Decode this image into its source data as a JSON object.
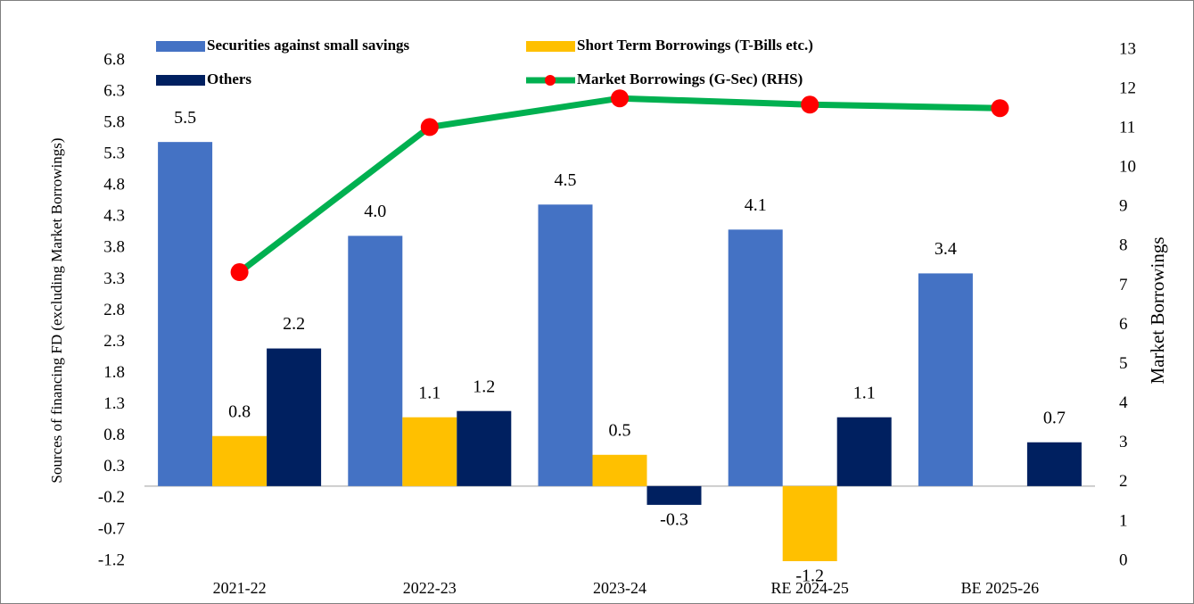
{
  "chart_data": {
    "type": "bar_line",
    "categories": [
      "2021-22",
      "2022-23",
      "2023-24",
      "RE 2024-25",
      "BE 2025-26"
    ],
    "ylabel": "Sources of  financing FD (excluding Market Borrowings)",
    "y2label": "Market Borrowings",
    "ylim": [
      -1.2,
      6.8
    ],
    "yticks": [
      -1.2,
      -0.7,
      -0.2,
      0.3,
      0.8,
      1.3,
      1.8,
      2.3,
      2.8,
      3.3,
      3.8,
      4.3,
      4.8,
      5.3,
      5.8,
      6.3,
      6.8
    ],
    "y2lim": [
      0,
      13
    ],
    "y2ticks": [
      0,
      1,
      2,
      3,
      4,
      5,
      6,
      7,
      8,
      9,
      10,
      11,
      12,
      13
    ],
    "series": [
      {
        "name": "Securities against small savings",
        "type": "bar",
        "color": "#4472c4",
        "values": [
          5.5,
          4.0,
          4.5,
          4.1,
          3.4
        ],
        "value_labels": [
          "5.5",
          "4.0",
          "4.5",
          "4.1",
          "3.4"
        ]
      },
      {
        "name": "Short Term Borrowings (T-Bills etc.)",
        "type": "bar",
        "color": "#ffc000",
        "values": [
          0.8,
          1.1,
          0.5,
          -1.2,
          null
        ],
        "value_labels": [
          "0.8",
          "1.1",
          "0.5",
          "-1.2",
          null
        ]
      },
      {
        "name": "Others",
        "type": "bar",
        "color": "#002060",
        "values": [
          2.2,
          1.2,
          -0.3,
          1.1,
          0.7
        ],
        "value_labels": [
          "2.2",
          "1.2",
          "-0.3",
          "1.1",
          "0.7"
        ]
      },
      {
        "name": "Market Borrowings (G-Sec) (RHS)",
        "type": "line",
        "axis": "y2",
        "color": "#00b050",
        "marker_color": "#ff0000",
        "values": [
          7.35,
          11.04,
          11.77,
          11.61,
          11.52
        ]
      }
    ]
  }
}
